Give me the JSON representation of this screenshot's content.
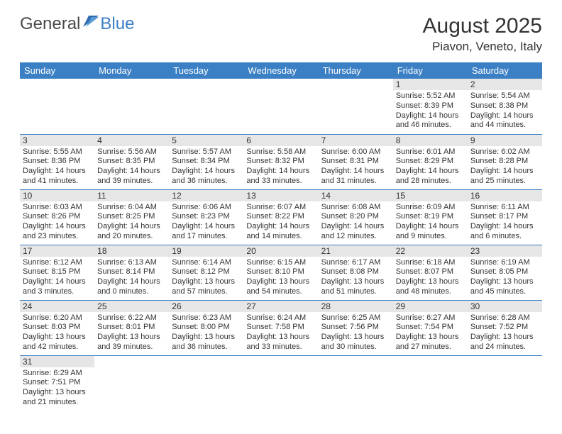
{
  "brand": {
    "part1": "General",
    "part2": "Blue"
  },
  "title": "August 2025",
  "location": "Piavon, Veneto, Italy",
  "colors": {
    "header_bg": "#3b7fc4",
    "header_text": "#ffffff",
    "daynum_bg": "#e6e6e6",
    "row_border": "#3b7fc4",
    "text": "#333333",
    "page_bg": "#ffffff"
  },
  "fonts": {
    "title_size": 30,
    "location_size": 17,
    "dayhdr_size": 13,
    "body_size": 11
  },
  "day_headers": [
    "Sunday",
    "Monday",
    "Tuesday",
    "Wednesday",
    "Thursday",
    "Friday",
    "Saturday"
  ],
  "weeks": [
    [
      null,
      null,
      null,
      null,
      null,
      {
        "n": "1",
        "sunrise": "Sunrise: 5:52 AM",
        "sunset": "Sunset: 8:39 PM",
        "day1": "Daylight: 14 hours",
        "day2": "and 46 minutes."
      },
      {
        "n": "2",
        "sunrise": "Sunrise: 5:54 AM",
        "sunset": "Sunset: 8:38 PM",
        "day1": "Daylight: 14 hours",
        "day2": "and 44 minutes."
      }
    ],
    [
      {
        "n": "3",
        "sunrise": "Sunrise: 5:55 AM",
        "sunset": "Sunset: 8:36 PM",
        "day1": "Daylight: 14 hours",
        "day2": "and 41 minutes."
      },
      {
        "n": "4",
        "sunrise": "Sunrise: 5:56 AM",
        "sunset": "Sunset: 8:35 PM",
        "day1": "Daylight: 14 hours",
        "day2": "and 39 minutes."
      },
      {
        "n": "5",
        "sunrise": "Sunrise: 5:57 AM",
        "sunset": "Sunset: 8:34 PM",
        "day1": "Daylight: 14 hours",
        "day2": "and 36 minutes."
      },
      {
        "n": "6",
        "sunrise": "Sunrise: 5:58 AM",
        "sunset": "Sunset: 8:32 PM",
        "day1": "Daylight: 14 hours",
        "day2": "and 33 minutes."
      },
      {
        "n": "7",
        "sunrise": "Sunrise: 6:00 AM",
        "sunset": "Sunset: 8:31 PM",
        "day1": "Daylight: 14 hours",
        "day2": "and 31 minutes."
      },
      {
        "n": "8",
        "sunrise": "Sunrise: 6:01 AM",
        "sunset": "Sunset: 8:29 PM",
        "day1": "Daylight: 14 hours",
        "day2": "and 28 minutes."
      },
      {
        "n": "9",
        "sunrise": "Sunrise: 6:02 AM",
        "sunset": "Sunset: 8:28 PM",
        "day1": "Daylight: 14 hours",
        "day2": "and 25 minutes."
      }
    ],
    [
      {
        "n": "10",
        "sunrise": "Sunrise: 6:03 AM",
        "sunset": "Sunset: 8:26 PM",
        "day1": "Daylight: 14 hours",
        "day2": "and 23 minutes."
      },
      {
        "n": "11",
        "sunrise": "Sunrise: 6:04 AM",
        "sunset": "Sunset: 8:25 PM",
        "day1": "Daylight: 14 hours",
        "day2": "and 20 minutes."
      },
      {
        "n": "12",
        "sunrise": "Sunrise: 6:06 AM",
        "sunset": "Sunset: 8:23 PM",
        "day1": "Daylight: 14 hours",
        "day2": "and 17 minutes."
      },
      {
        "n": "13",
        "sunrise": "Sunrise: 6:07 AM",
        "sunset": "Sunset: 8:22 PM",
        "day1": "Daylight: 14 hours",
        "day2": "and 14 minutes."
      },
      {
        "n": "14",
        "sunrise": "Sunrise: 6:08 AM",
        "sunset": "Sunset: 8:20 PM",
        "day1": "Daylight: 14 hours",
        "day2": "and 12 minutes."
      },
      {
        "n": "15",
        "sunrise": "Sunrise: 6:09 AM",
        "sunset": "Sunset: 8:19 PM",
        "day1": "Daylight: 14 hours",
        "day2": "and 9 minutes."
      },
      {
        "n": "16",
        "sunrise": "Sunrise: 6:11 AM",
        "sunset": "Sunset: 8:17 PM",
        "day1": "Daylight: 14 hours",
        "day2": "and 6 minutes."
      }
    ],
    [
      {
        "n": "17",
        "sunrise": "Sunrise: 6:12 AM",
        "sunset": "Sunset: 8:15 PM",
        "day1": "Daylight: 14 hours",
        "day2": "and 3 minutes."
      },
      {
        "n": "18",
        "sunrise": "Sunrise: 6:13 AM",
        "sunset": "Sunset: 8:14 PM",
        "day1": "Daylight: 14 hours",
        "day2": "and 0 minutes."
      },
      {
        "n": "19",
        "sunrise": "Sunrise: 6:14 AM",
        "sunset": "Sunset: 8:12 PM",
        "day1": "Daylight: 13 hours",
        "day2": "and 57 minutes."
      },
      {
        "n": "20",
        "sunrise": "Sunrise: 6:15 AM",
        "sunset": "Sunset: 8:10 PM",
        "day1": "Daylight: 13 hours",
        "day2": "and 54 minutes."
      },
      {
        "n": "21",
        "sunrise": "Sunrise: 6:17 AM",
        "sunset": "Sunset: 8:08 PM",
        "day1": "Daylight: 13 hours",
        "day2": "and 51 minutes."
      },
      {
        "n": "22",
        "sunrise": "Sunrise: 6:18 AM",
        "sunset": "Sunset: 8:07 PM",
        "day1": "Daylight: 13 hours",
        "day2": "and 48 minutes."
      },
      {
        "n": "23",
        "sunrise": "Sunrise: 6:19 AM",
        "sunset": "Sunset: 8:05 PM",
        "day1": "Daylight: 13 hours",
        "day2": "and 45 minutes."
      }
    ],
    [
      {
        "n": "24",
        "sunrise": "Sunrise: 6:20 AM",
        "sunset": "Sunset: 8:03 PM",
        "day1": "Daylight: 13 hours",
        "day2": "and 42 minutes."
      },
      {
        "n": "25",
        "sunrise": "Sunrise: 6:22 AM",
        "sunset": "Sunset: 8:01 PM",
        "day1": "Daylight: 13 hours",
        "day2": "and 39 minutes."
      },
      {
        "n": "26",
        "sunrise": "Sunrise: 6:23 AM",
        "sunset": "Sunset: 8:00 PM",
        "day1": "Daylight: 13 hours",
        "day2": "and 36 minutes."
      },
      {
        "n": "27",
        "sunrise": "Sunrise: 6:24 AM",
        "sunset": "Sunset: 7:58 PM",
        "day1": "Daylight: 13 hours",
        "day2": "and 33 minutes."
      },
      {
        "n": "28",
        "sunrise": "Sunrise: 6:25 AM",
        "sunset": "Sunset: 7:56 PM",
        "day1": "Daylight: 13 hours",
        "day2": "and 30 minutes."
      },
      {
        "n": "29",
        "sunrise": "Sunrise: 6:27 AM",
        "sunset": "Sunset: 7:54 PM",
        "day1": "Daylight: 13 hours",
        "day2": "and 27 minutes."
      },
      {
        "n": "30",
        "sunrise": "Sunrise: 6:28 AM",
        "sunset": "Sunset: 7:52 PM",
        "day1": "Daylight: 13 hours",
        "day2": "and 24 minutes."
      }
    ],
    [
      {
        "n": "31",
        "sunrise": "Sunrise: 6:29 AM",
        "sunset": "Sunset: 7:51 PM",
        "day1": "Daylight: 13 hours",
        "day2": "and 21 minutes."
      },
      null,
      null,
      null,
      null,
      null,
      null
    ]
  ]
}
